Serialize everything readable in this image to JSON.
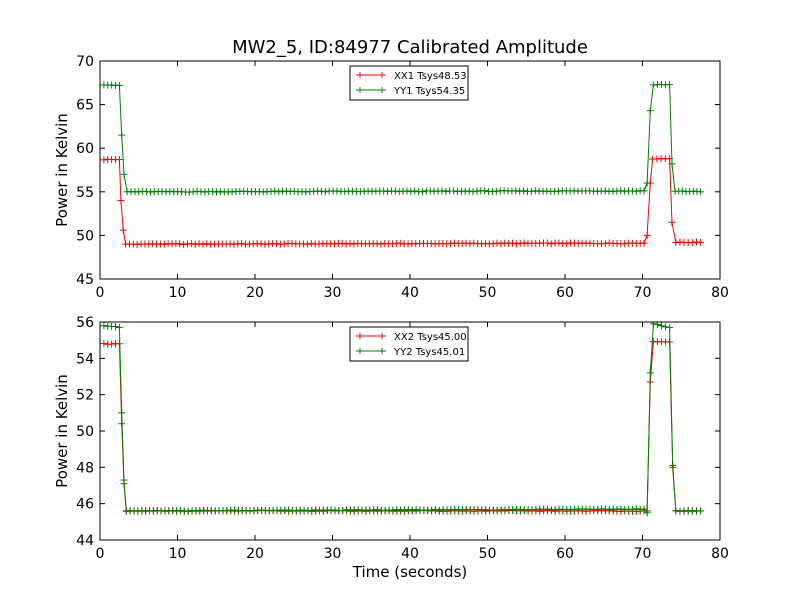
{
  "title": "MW2_5, ID:84977 Calibrated Amplitude",
  "chart_data": [
    {
      "type": "line",
      "xlabel": "",
      "ylabel": "Power in Kelvin",
      "xlim": [
        0,
        80
      ],
      "ylim": [
        45,
        70
      ],
      "xticks": [
        "0",
        "10",
        "20",
        "30",
        "40",
        "50",
        "60",
        "70",
        "80"
      ],
      "yticks": [
        "45",
        "50",
        "55",
        "60",
        "65",
        "70"
      ],
      "legend_position": "top-center",
      "grid": false,
      "series": [
        {
          "name": "XX1 Tsys48.53",
          "color": "#ff0000",
          "marker": "plus",
          "x": [
            0.5,
            2.5,
            2.7,
            3.0,
            3.3,
            70.2,
            70.6,
            71.0,
            71.3,
            73.5,
            73.8,
            74.3,
            77.5
          ],
          "values": [
            58.7,
            58.7,
            54.0,
            50.6,
            49.0,
            49.1,
            50.0,
            56.0,
            58.8,
            58.8,
            51.5,
            49.2,
            49.2
          ]
        },
        {
          "name": "YY1 Tsys54.35",
          "color": "#008000",
          "marker": "plus",
          "x": [
            0.5,
            2.5,
            2.8,
            3.1,
            3.5,
            70.2,
            70.6,
            71.0,
            71.4,
            73.5,
            73.8,
            74.2,
            77.5
          ],
          "values": [
            67.3,
            67.2,
            61.5,
            57.0,
            55.0,
            55.1,
            56.0,
            64.3,
            67.3,
            67.3,
            58.2,
            55.1,
            55.0
          ]
        }
      ]
    },
    {
      "type": "line",
      "xlabel": "Time (seconds)",
      "ylabel": "Power in Kelvin",
      "xlim": [
        0,
        80
      ],
      "ylim": [
        44,
        56
      ],
      "xticks": [
        "0",
        "10",
        "20",
        "30",
        "40",
        "50",
        "60",
        "70",
        "80"
      ],
      "yticks": [
        "44",
        "46",
        "48",
        "50",
        "52",
        "54",
        "56"
      ],
      "legend_position": "top-center",
      "grid": false,
      "series": [
        {
          "name": "XX2 Tsys45.00",
          "color": "#ff0000",
          "marker": "plus",
          "x": [
            0.5,
            2.5,
            2.8,
            3.1,
            3.4,
            70.2,
            70.6,
            71.0,
            71.4,
            73.5,
            73.9,
            74.3,
            77.5
          ],
          "values": [
            54.8,
            54.8,
            50.4,
            47.1,
            45.6,
            45.6,
            45.6,
            52.7,
            54.9,
            54.9,
            48.0,
            45.6,
            45.6
          ]
        },
        {
          "name": "YY2 Tsys45.01",
          "color": "#008000",
          "marker": "plus",
          "x": [
            0.5,
            2.5,
            2.8,
            3.1,
            3.4,
            70.2,
            70.6,
            71.0,
            71.4,
            73.5,
            73.9,
            74.3,
            77.5
          ],
          "values": [
            55.8,
            55.7,
            51.0,
            47.3,
            45.6,
            45.7,
            45.5,
            53.2,
            55.9,
            55.7,
            48.1,
            45.6,
            45.6
          ]
        }
      ]
    }
  ]
}
